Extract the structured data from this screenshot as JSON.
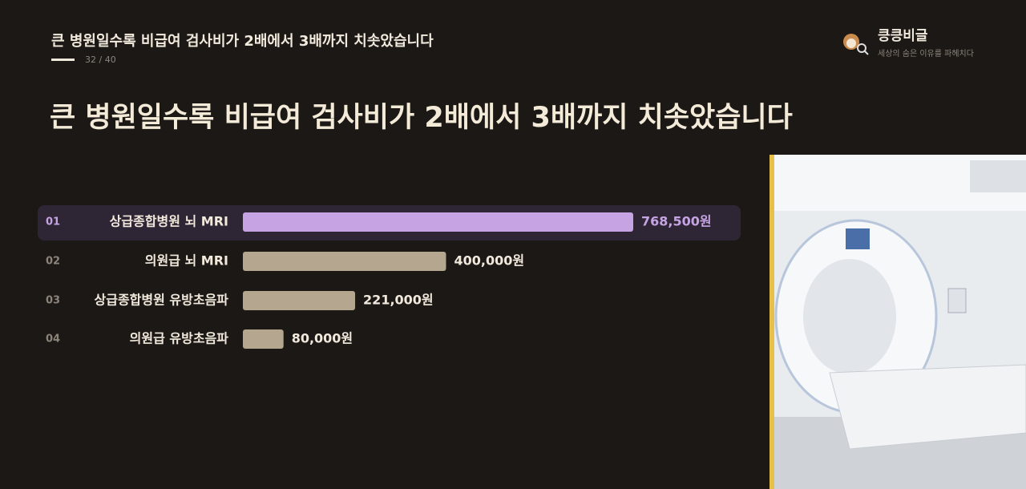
{
  "header": {
    "title": "큰 병원일수록 비급여 검사비가 2배에서 3배까지 치솟았습니다",
    "page": "32 / 40"
  },
  "brand": {
    "name": "킁킁비글",
    "tagline": "세상의 숨은 이유를 파헤치다"
  },
  "chart_data": {
    "type": "bar",
    "orientation": "horizontal",
    "title": "큰 병원일수록 비급여 검사비가 2배에서 3배까지 치솟았습니다",
    "ranks": [
      "01",
      "02",
      "03",
      "04"
    ],
    "categories": [
      "상급종합병원 뇌 MRI",
      "의원급 뇌 MRI",
      "상급종합병원 유방초음파",
      "의원급 유방초음파"
    ],
    "values": [
      768500,
      400000,
      221000,
      80000
    ],
    "value_labels": [
      "768,500원",
      "400,000원",
      "221,000원",
      "80,000원"
    ],
    "colors": [
      "#c6a4e4",
      "#b5a68f",
      "#b5a68f",
      "#b5a68f"
    ],
    "highlight_index": 0
  }
}
